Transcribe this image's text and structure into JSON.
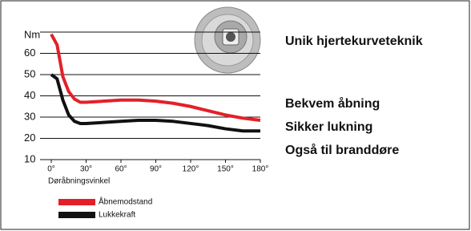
{
  "chart_data": {
    "type": "line",
    "y_label": "Nm",
    "x_label": "Døråbningsvinkel",
    "x": [
      0,
      5,
      10,
      15,
      20,
      25,
      30,
      45,
      60,
      75,
      90,
      105,
      120,
      135,
      150,
      165,
      180
    ],
    "series": [
      {
        "name": "Åbnemodstand",
        "color": "#e3202a",
        "values": [
          69,
          64,
          49,
          42,
          38.5,
          37,
          37,
          37.5,
          38,
          38,
          37.5,
          36.5,
          35,
          33,
          31,
          29.5,
          28.5
        ]
      },
      {
        "name": "Lukkekraft",
        "color": "#111111",
        "values": [
          50,
          48,
          38,
          31,
          28,
          27,
          27,
          27.5,
          28,
          28.5,
          28.5,
          28,
          27,
          26,
          24.5,
          23.5,
          23.5
        ]
      }
    ],
    "xlim": [
      0,
      180
    ],
    "xticks": [
      {
        "value": 0,
        "label": "0°"
      },
      {
        "value": 30,
        "label": "30°"
      },
      {
        "value": 60,
        "label": "60°"
      },
      {
        "value": 90,
        "label": "90°"
      },
      {
        "value": 120,
        "label": "120°"
      },
      {
        "value": 150,
        "label": "150°"
      },
      {
        "value": 180,
        "label": "180°"
      }
    ],
    "ylim": [
      10,
      70
    ],
    "yticks": [
      10,
      20,
      30,
      40,
      50,
      60
    ],
    "grid": true
  },
  "panel": {
    "headline": "Unik hjertekurveteknik",
    "features": [
      "Bekvem åbning",
      "Sikker lukning",
      "Også til branddøre"
    ]
  }
}
